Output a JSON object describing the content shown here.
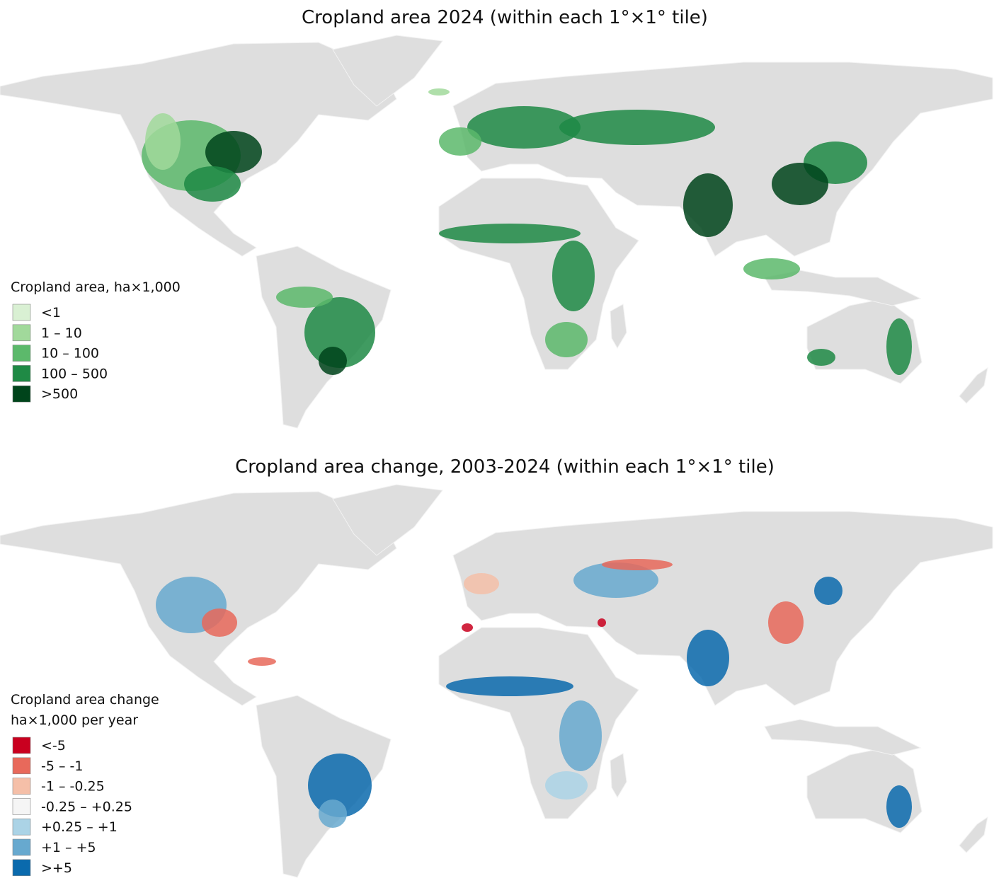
{
  "maps": [
    {
      "title": "Cropland area 2024 (within each 1°×1° tile)",
      "legend": {
        "title_lines": [
          "Cropland area, ha×1,000"
        ],
        "items": [
          {
            "label": "<1",
            "color": "#d9f0d3"
          },
          {
            "label": "1 – 10",
            "color": "#a1d99b"
          },
          {
            "label": "10 – 100",
            "color": "#5cb96b"
          },
          {
            "label": "100 – 500",
            "color": "#1f8a45"
          },
          {
            "label": ">500",
            "color": "#00441b"
          }
        ]
      }
    },
    {
      "title": "Cropland area change, 2003-2024 (within each 1°×1° tile)",
      "legend": {
        "title_lines": [
          "Cropland area change",
          "ha×1,000 per year"
        ],
        "items": [
          {
            "label": "<-5",
            "color": "#c9001f"
          },
          {
            "label": "-5 – -1",
            "color": "#e8695b"
          },
          {
            "label": "-1 – -0.25",
            "color": "#f5bfa8"
          },
          {
            "label": "-0.25 – +0.25",
            "color": "#f5f5f5"
          },
          {
            "label": "+0.25 – +1",
            "color": "#abd3e6"
          },
          {
            "label": "+1 – +5",
            "color": "#67a9cf"
          },
          {
            "label": ">+5",
            "color": "#0a6aad"
          }
        ]
      }
    }
  ]
}
